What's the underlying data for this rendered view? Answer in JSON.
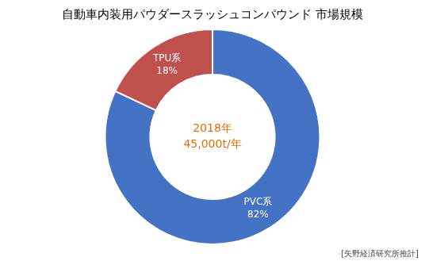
{
  "chart_data": {
    "type": "doughnut",
    "title": "自動車内装用パウダースラッシュコンパウンド 市場規模",
    "categories": [
      "PVC系",
      "TPU系"
    ],
    "values": [
      82,
      18
    ],
    "value_labels": [
      "82%",
      "18%"
    ],
    "colors": [
      "#4472C4",
      "#C0504D"
    ],
    "data_labels": true,
    "legend": false,
    "annotations": [
      {
        "text": "2018年",
        "color": "#E36C09"
      },
      {
        "text": "45,000t/年",
        "color": "#E36C09"
      },
      {
        "text": "[矢野経済研究所推計]",
        "color": "#444444"
      }
    ]
  }
}
